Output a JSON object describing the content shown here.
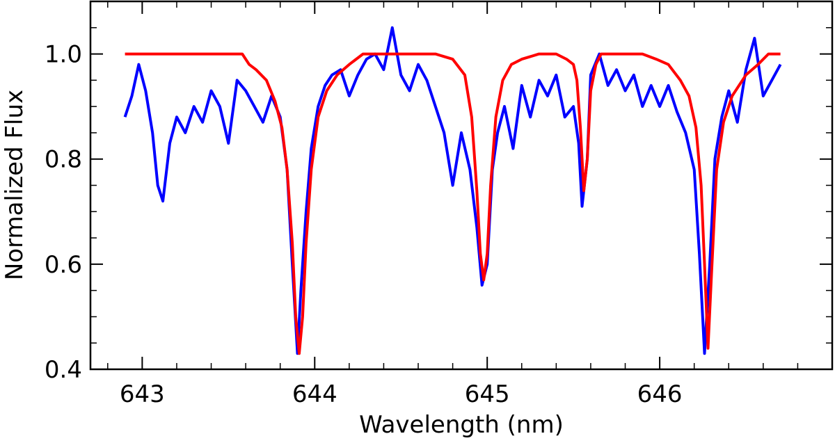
{
  "chart_data": {
    "type": "line",
    "xlabel": "Wavelength (nm)",
    "ylabel": "Normalized Flux",
    "xlim": [
      642.7,
      647.0
    ],
    "ylim": [
      0.4,
      1.1
    ],
    "x_ticks": [
      643,
      644,
      645,
      646
    ],
    "x_tick_labels": [
      "643",
      "644",
      "645",
      "646"
    ],
    "y_ticks": [
      0.4,
      0.6,
      0.8,
      1.0
    ],
    "y_tick_labels": [
      "0.4",
      "0.6",
      "0.8",
      "1.0"
    ],
    "grid": false,
    "series": [
      {
        "color": "#0000ff",
        "x": [
          642.9,
          642.94,
          642.98,
          643.02,
          643.06,
          643.09,
          643.12,
          643.16,
          643.2,
          643.25,
          643.3,
          643.35,
          643.4,
          643.45,
          643.5,
          643.55,
          643.6,
          643.65,
          643.7,
          643.75,
          643.8,
          643.84,
          643.87,
          643.9,
          643.92,
          643.95,
          643.98,
          644.02,
          644.06,
          644.1,
          644.15,
          644.2,
          644.25,
          644.3,
          644.35,
          644.4,
          644.45,
          644.5,
          644.55,
          644.6,
          644.65,
          644.7,
          644.75,
          644.8,
          644.85,
          644.9,
          644.94,
          644.97,
          645.0,
          645.03,
          645.06,
          645.1,
          645.15,
          645.2,
          645.25,
          645.3,
          645.35,
          645.4,
          645.45,
          645.5,
          645.53,
          645.55,
          645.58,
          645.6,
          645.65,
          645.7,
          645.75,
          645.8,
          645.85,
          645.9,
          645.95,
          646.0,
          646.05,
          646.1,
          646.15,
          646.2,
          646.23,
          646.26,
          646.29,
          646.32,
          646.36,
          646.4,
          646.45,
          646.5,
          646.55,
          646.6,
          646.65,
          646.7
        ],
        "y": [
          0.88,
          0.92,
          0.98,
          0.93,
          0.85,
          0.75,
          0.72,
          0.83,
          0.88,
          0.85,
          0.9,
          0.87,
          0.93,
          0.9,
          0.83,
          0.95,
          0.93,
          0.9,
          0.87,
          0.92,
          0.88,
          0.78,
          0.6,
          0.43,
          0.55,
          0.7,
          0.82,
          0.9,
          0.94,
          0.96,
          0.97,
          0.92,
          0.96,
          0.99,
          1.0,
          0.97,
          1.05,
          0.96,
          0.93,
          0.98,
          0.95,
          0.9,
          0.85,
          0.75,
          0.85,
          0.78,
          0.67,
          0.56,
          0.6,
          0.78,
          0.85,
          0.9,
          0.82,
          0.94,
          0.88,
          0.95,
          0.92,
          0.96,
          0.88,
          0.9,
          0.83,
          0.71,
          0.8,
          0.96,
          1.0,
          0.94,
          0.97,
          0.93,
          0.96,
          0.9,
          0.94,
          0.9,
          0.94,
          0.89,
          0.85,
          0.78,
          0.62,
          0.43,
          0.6,
          0.8,
          0.88,
          0.93,
          0.87,
          0.97,
          1.03,
          0.92,
          0.95,
          0.98
        ]
      },
      {
        "color": "#ff0000",
        "x": [
          642.9,
          643.2,
          643.4,
          643.58,
          643.62,
          643.66,
          643.72,
          643.77,
          643.81,
          643.84,
          643.87,
          643.89,
          643.91,
          643.93,
          643.95,
          643.98,
          644.02,
          644.07,
          644.13,
          644.2,
          644.28,
          644.35,
          644.5,
          644.7,
          644.8,
          644.87,
          644.91,
          644.94,
          644.96,
          644.98,
          645.0,
          645.02,
          645.05,
          645.09,
          645.14,
          645.2,
          645.3,
          645.4,
          645.46,
          645.5,
          645.52,
          645.54,
          645.56,
          645.58,
          645.6,
          645.63,
          645.66,
          645.7,
          645.8,
          645.9,
          645.98,
          646.05,
          646.12,
          646.17,
          646.21,
          646.24,
          646.26,
          646.28,
          646.3,
          646.33,
          646.37,
          646.42,
          646.5,
          646.57,
          646.63,
          646.7
        ],
        "y": [
          1.0,
          1.0,
          1.0,
          1.0,
          0.98,
          0.97,
          0.95,
          0.91,
          0.86,
          0.78,
          0.64,
          0.5,
          0.43,
          0.5,
          0.64,
          0.78,
          0.88,
          0.93,
          0.96,
          0.98,
          1.0,
          1.0,
          1.0,
          1.0,
          0.99,
          0.96,
          0.88,
          0.74,
          0.62,
          0.57,
          0.62,
          0.75,
          0.88,
          0.95,
          0.98,
          0.99,
          1.0,
          1.0,
          0.99,
          0.98,
          0.95,
          0.86,
          0.74,
          0.8,
          0.93,
          0.98,
          1.0,
          1.0,
          1.0,
          1.0,
          0.99,
          0.98,
          0.95,
          0.92,
          0.86,
          0.75,
          0.6,
          0.44,
          0.58,
          0.78,
          0.87,
          0.92,
          0.96,
          0.98,
          1.0,
          1.0
        ]
      }
    ]
  }
}
